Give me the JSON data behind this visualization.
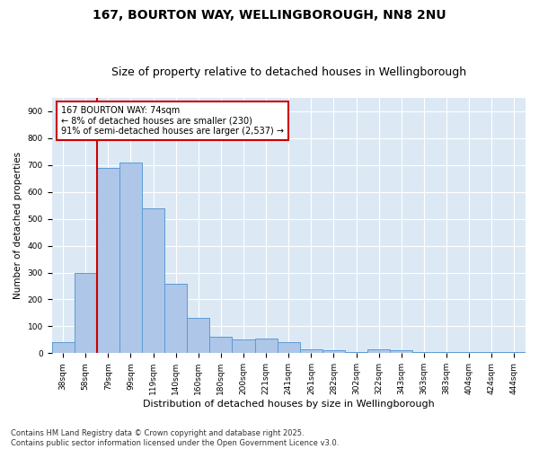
{
  "title1": "167, BOURTON WAY, WELLINGBOROUGH, NN8 2NU",
  "title2": "Size of property relative to detached houses in Wellingborough",
  "xlabel": "Distribution of detached houses by size in Wellingborough",
  "ylabel": "Number of detached properties",
  "categories": [
    "38sqm",
    "58sqm",
    "79sqm",
    "99sqm",
    "119sqm",
    "140sqm",
    "160sqm",
    "180sqm",
    "200sqm",
    "221sqm",
    "241sqm",
    "261sqm",
    "282sqm",
    "302sqm",
    "322sqm",
    "343sqm",
    "363sqm",
    "383sqm",
    "404sqm",
    "424sqm",
    "444sqm"
  ],
  "values": [
    40,
    300,
    690,
    710,
    540,
    260,
    130,
    60,
    50,
    55,
    40,
    15,
    10,
    5,
    15,
    10,
    3,
    3,
    3,
    3,
    3
  ],
  "bar_color": "#aec6e8",
  "bar_edge_color": "#5b9bd5",
  "reference_line_color": "#cc0000",
  "annotation_text": "167 BOURTON WAY: 74sqm\n← 8% of detached houses are smaller (230)\n91% of semi-detached houses are larger (2,537) →",
  "annotation_box_color": "#cc0000",
  "ylim": [
    0,
    950
  ],
  "yticks": [
    0,
    100,
    200,
    300,
    400,
    500,
    600,
    700,
    800,
    900
  ],
  "background_color": "#dce9f5",
  "footnote": "Contains HM Land Registry data © Crown copyright and database right 2025.\nContains public sector information licensed under the Open Government Licence v3.0.",
  "title_fontsize": 10,
  "subtitle_fontsize": 9,
  "xlabel_fontsize": 8,
  "ylabel_fontsize": 7.5,
  "tick_fontsize": 6.5,
  "annotation_fontsize": 7,
  "footnote_fontsize": 6
}
